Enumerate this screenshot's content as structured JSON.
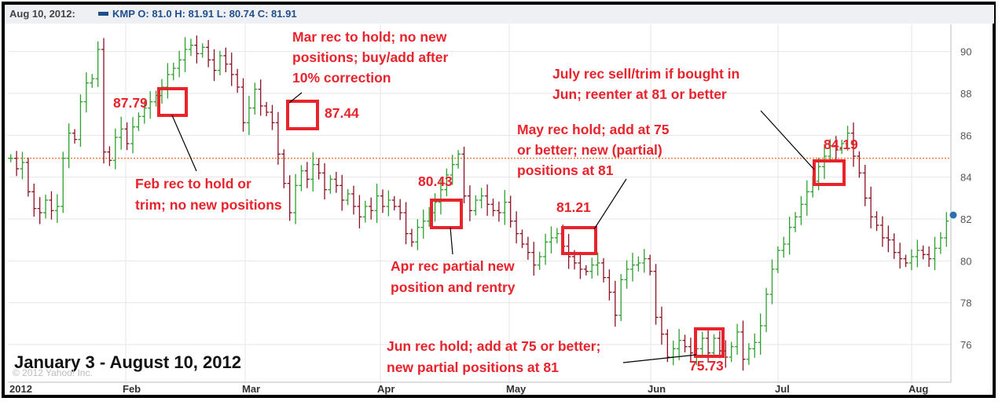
{
  "header": {
    "date": "Aug 10, 2012:",
    "ticker_line": "KMP O: 81.0 H: 81.91 L: 80.74 C: 81.91",
    "legend_color": "#1f4e8c"
  },
  "date_range_label": "January 3 - August 10, 2012",
  "copyright": "© 2012 Yahoo! Inc.",
  "colors": {
    "up": "#2ca02c",
    "down": "#8b1020",
    "annotation": "#e8232b",
    "reference_line": "#f08040",
    "marker": "#2a6fb0"
  },
  "chart_data": {
    "type": "ohlc",
    "title": "",
    "xlabel": "",
    "ylabel": "",
    "ylim": [
      74.2,
      91.3
    ],
    "y_ticks": [
      76,
      78,
      80,
      82,
      84,
      86,
      88,
      90
    ],
    "x_ticks": [
      "2012",
      "Feb",
      "Mar",
      "Apr",
      "May",
      "Jun",
      "Jul",
      "Aug"
    ],
    "grid": true,
    "reference_line": 84.9,
    "last_price": 81.91,
    "closes": [
      84.9,
      84.4,
      84.7,
      83.3,
      82.5,
      82.3,
      82.9,
      82.4,
      82.6,
      84.9,
      86.1,
      85.8,
      87.6,
      88.5,
      88.7,
      90.1,
      85.2,
      84.8,
      85.9,
      86.3,
      85.6,
      86.4,
      86.9,
      87.3,
      87.6,
      87.9,
      88.3,
      88.9,
      89.2,
      89.6,
      90.1,
      90.3,
      89.9,
      90.2,
      89.6,
      89.1,
      89.8,
      89.4,
      88.9,
      88.3,
      86.6,
      87.3,
      88.2,
      87.4,
      87.1,
      86.6,
      85.1,
      83.7,
      82.3,
      83.6,
      84.3,
      83.9,
      84.6,
      84.2,
      83.4,
      83.9,
      83.6,
      82.9,
      83.2,
      82.6,
      82.1,
      82.6,
      82.4,
      83.1,
      82.6,
      82.9,
      82.6,
      82.3,
      81.3,
      80.9,
      81.6,
      81.9,
      82.3,
      82.8,
      83.4,
      84.1,
      84.6,
      85.1,
      83.1,
      82.4,
      82.9,
      83.1,
      82.7,
      82.4,
      82.3,
      82.8,
      81.9,
      81.3,
      80.8,
      80.4,
      79.8,
      80.2,
      80.9,
      81.1,
      81.3,
      80.7,
      80.2,
      79.9,
      79.6,
      79.5,
      79.8,
      79.9,
      79.2,
      78.5,
      77.4,
      79.1,
      79.6,
      79.8,
      79.9,
      80.1,
      79.5,
      77.3,
      76.5,
      75.4,
      75.8,
      76.2,
      75.9,
      75.6,
      75.8,
      76.3,
      75.6,
      76.3,
      75.7,
      75.4,
      75.9,
      76.6,
      75.3,
      75.8,
      76.1,
      76.9,
      78.4,
      79.6,
      80.5,
      80.8,
      81.6,
      82.1,
      82.7,
      83.3,
      83.8,
      84.5,
      85.0,
      85.5,
      85.3,
      85.6,
      86.1,
      85.0,
      84.2,
      83.0,
      82.1,
      81.7,
      81.1,
      81.0,
      80.4,
      80.1,
      79.9,
      80.2,
      80.5,
      80.3,
      80.1,
      80.6,
      81.1,
      81.9
    ]
  },
  "annotations": {
    "price_87_79": "87.79",
    "price_87_44": "87.44",
    "price_80_43": "80.43",
    "price_81_21": "81.21",
    "price_84_19": "84.19",
    "price_75_73": "75.73",
    "feb_line1": "Feb rec to hold or",
    "feb_line2": "trim; no new positions",
    "mar_line1": "Mar rec to hold; no new",
    "mar_line2": "positions; buy/add after",
    "mar_line3": "10% correction",
    "apr_line1": "Apr rec partial new",
    "apr_line2": "position and rentry",
    "may_line1": "May rec hold; add at 75",
    "may_line2": "or better; new (partial)",
    "may_line3": "positions at 81",
    "jul_line1": "July rec sell/trim if bought in",
    "jul_line2": "Jun; reenter at 81 or better",
    "jun_line1": "Jun rec hold; add at 75 or better;",
    "jun_line2": "new partial positions at 81"
  }
}
